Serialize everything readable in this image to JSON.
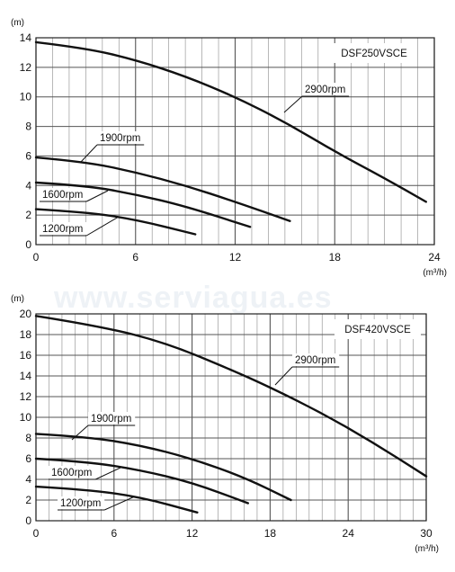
{
  "watermark": "www.serviagua.es",
  "chart_data": [
    {
      "type": "line",
      "title": "DSF250VSCE",
      "ylabel": "(m)",
      "xlabel": "(m³/h)",
      "xlim": [
        0,
        24
      ],
      "ylim": [
        0,
        14
      ],
      "xticks": [
        0,
        6,
        12,
        18,
        24
      ],
      "yticks": [
        0,
        2,
        4,
        6,
        8,
        10,
        12,
        14
      ],
      "grid": true,
      "series": [
        {
          "name": "2900rpm",
          "x": [
            0,
            3,
            6,
            9,
            12,
            15,
            18,
            21,
            23.5
          ],
          "y": [
            13.7,
            13.3,
            12.5,
            11.4,
            10.0,
            8.3,
            6.3,
            4.5,
            2.9
          ]
        },
        {
          "name": "1900rpm",
          "x": [
            0,
            3,
            6,
            9,
            12,
            15.3
          ],
          "y": [
            5.9,
            5.6,
            4.9,
            4.0,
            2.9,
            1.6
          ]
        },
        {
          "name": "1600rpm",
          "x": [
            0,
            3,
            6,
            9,
            12.9
          ],
          "y": [
            4.2,
            4.0,
            3.4,
            2.6,
            1.2
          ]
        },
        {
          "name": "1200rpm",
          "x": [
            0,
            3,
            6,
            9.6
          ],
          "y": [
            2.4,
            2.2,
            1.7,
            0.7
          ]
        }
      ]
    },
    {
      "type": "line",
      "title": "DSF420VSCE",
      "ylabel": "(m)",
      "xlabel": "(m³/h)",
      "xlim": [
        0,
        30
      ],
      "ylim": [
        0,
        20
      ],
      "xticks": [
        0,
        6,
        12,
        18,
        24,
        30
      ],
      "yticks": [
        0,
        2,
        4,
        6,
        8,
        10,
        12,
        14,
        16,
        18,
        20
      ],
      "grid": true,
      "series": [
        {
          "name": "2900rpm",
          "x": [
            0,
            5,
            10,
            15,
            18,
            22,
            26,
            30
          ],
          "y": [
            19.8,
            18.8,
            17.2,
            14.6,
            12.9,
            10.4,
            7.5,
            4.3
          ]
        },
        {
          "name": "1900rpm",
          "x": [
            0,
            4,
            8,
            12,
            16,
            19.6
          ],
          "y": [
            8.4,
            8.1,
            7.3,
            6.0,
            4.2,
            2.0
          ]
        },
        {
          "name": "1600rpm",
          "x": [
            0,
            4,
            8,
            12,
            16.3
          ],
          "y": [
            6.0,
            5.7,
            4.9,
            3.7,
            1.7
          ]
        },
        {
          "name": "1200rpm",
          "x": [
            0,
            4,
            8,
            12.4
          ],
          "y": [
            3.3,
            3.0,
            2.3,
            0.8
          ]
        }
      ]
    }
  ]
}
